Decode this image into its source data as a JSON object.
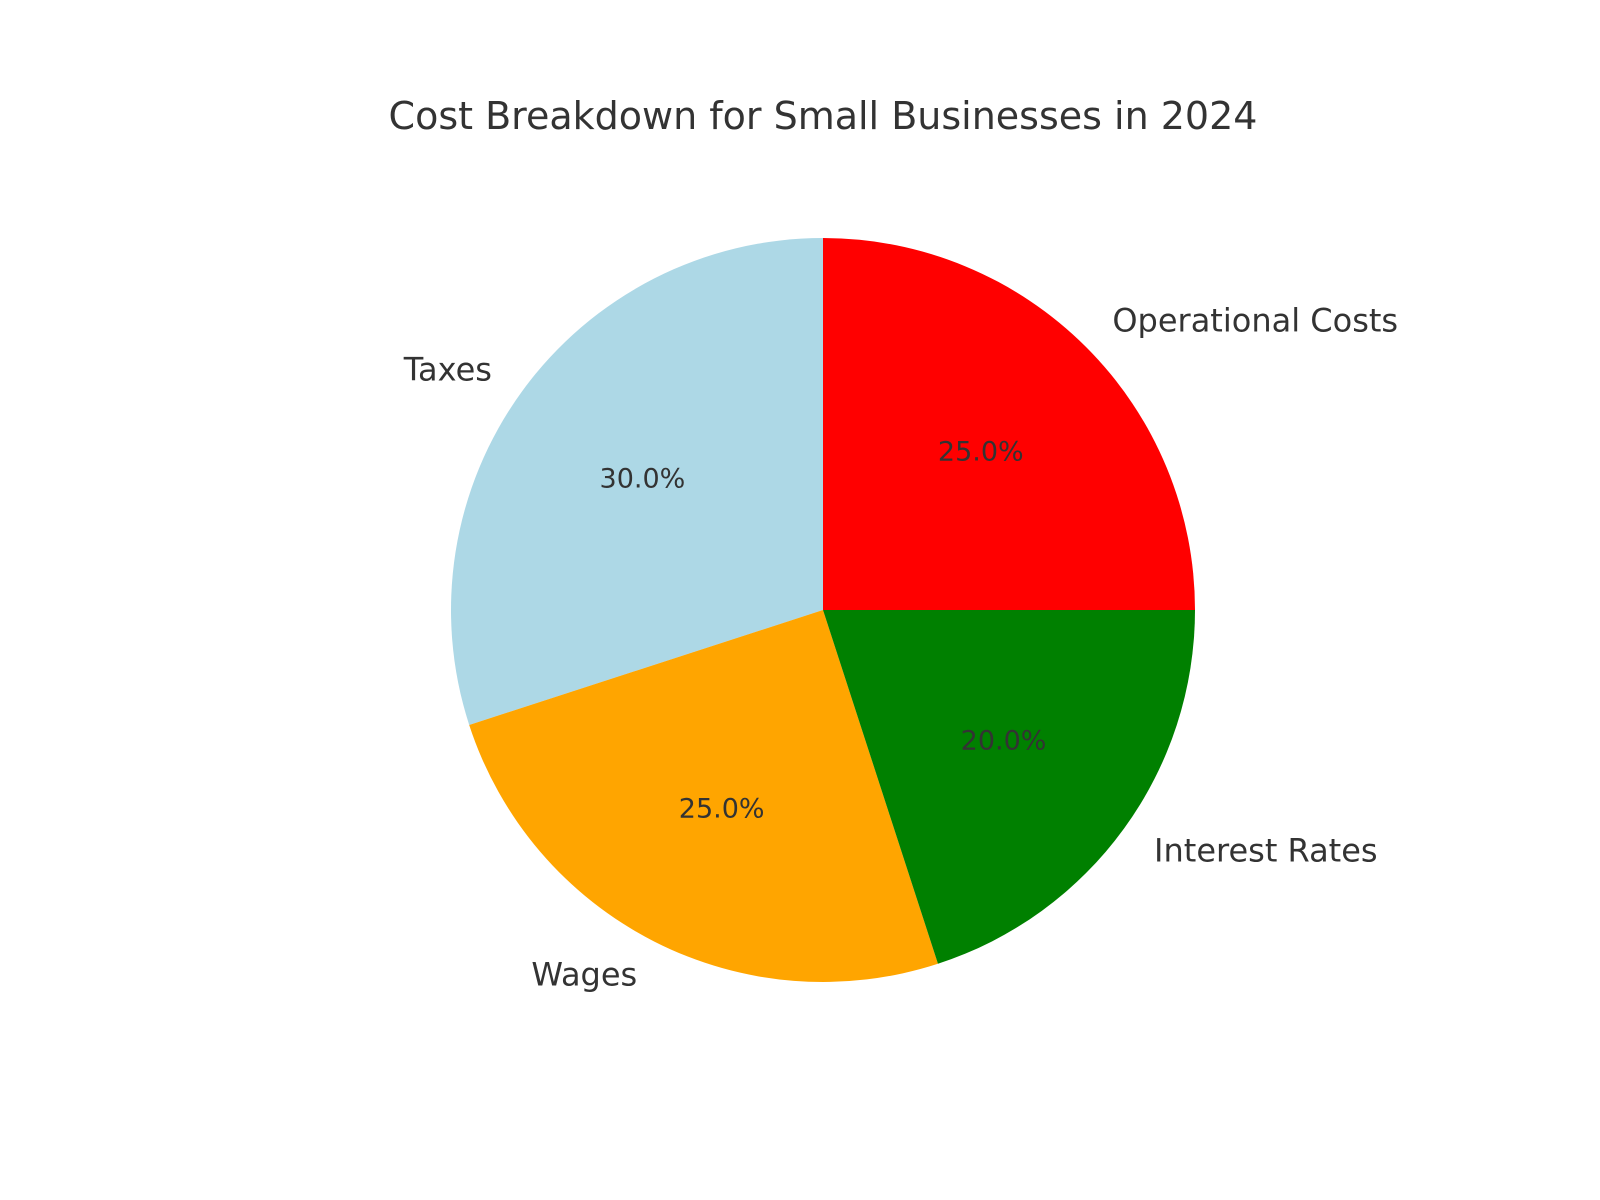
{
  "chart_data": {
    "type": "pie",
    "title": "Cost Breakdown for Small Businesses in 2024",
    "start_angle_deg": 90,
    "direction": "counterclockwise",
    "legend": "none",
    "slices": [
      {
        "label": "Taxes",
        "value": 30.0,
        "pct_label": "30.0%",
        "color": "#add8e6"
      },
      {
        "label": "Wages",
        "value": 25.0,
        "pct_label": "25.0%",
        "color": "#ffa500"
      },
      {
        "label": "Interest Rates",
        "value": 20.0,
        "pct_label": "20.0%",
        "color": "#008000"
      },
      {
        "label": "Operational Costs",
        "value": 25.0,
        "pct_label": "25.0%",
        "color": "#ff0000"
      }
    ]
  }
}
